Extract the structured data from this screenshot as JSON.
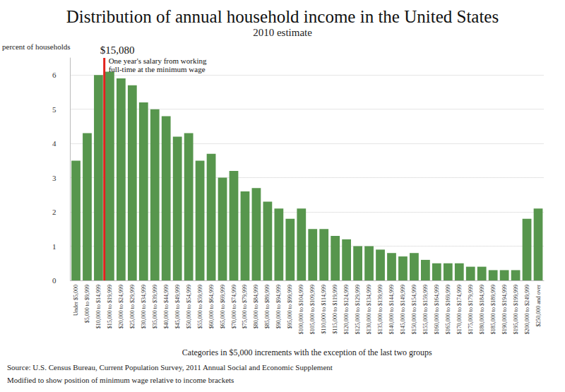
{
  "chart_data": {
    "type": "bar",
    "title": "Distribution of annual household income in the United States",
    "subtitle": "2010 estimate",
    "y_label": "percent of households",
    "x_label": "Categories in $5,000 increments with the exception of the last two groups",
    "source": "Source: U.S. Census Bureau, Current Population Survey, 2011 Annual Social and Economic Supplement",
    "note": "Modified to show position of minimum wage relative to income brackets",
    "categories": [
      "Under $5,000",
      "$5,000 to $9,999",
      "$10,000 to $14,999",
      "$15,000 to $19,999",
      "$20,000 to $24,999",
      "$25,000 to $29,999",
      "$30,000 to $34,999",
      "$35,000 to $39,999",
      "$40,000 to $44,999",
      "$45,000 to $49,999",
      "$50,000 to $54,999",
      "$55,000 to $59,999",
      "$60,000 to $64,999",
      "$65,000 to $69,999",
      "$70,000 to $74,999",
      "$75,000 to $79,999",
      "$80,000 to $84,999",
      "$85,000 to $89,999",
      "$90,000 to $94,999",
      "$95,000 to $99,999",
      "$100,000 to $104,999",
      "$105,000 to $109,999",
      "$110,000 to $114,999",
      "$115,000 to $119,999",
      "$120,000 to $124,999",
      "$125,000 to $129,999",
      "$130,000 to $134,999",
      "$135,000 to $139,999",
      "$140,000 to $144,999",
      "$145,000 to $149,999",
      "$150,000 to $154,999",
      "$155,000 to $159,999",
      "$160,000 to $164,999",
      "$165,000 to $169,999",
      "$170,000 to $174,999",
      "$175,000 to $179,999",
      "$180,000 to $184,999",
      "$185,000 to $189,999",
      "$190,000 to $194,999",
      "$195,000 to $199,999",
      "$200,000 to $249,999",
      "$250,000 and over"
    ],
    "values": [
      3.5,
      4.3,
      6.0,
      6.1,
      5.9,
      5.7,
      5.2,
      5.0,
      4.8,
      4.2,
      4.3,
      3.5,
      3.7,
      3.0,
      3.2,
      2.6,
      2.7,
      2.3,
      2.1,
      1.8,
      2.1,
      1.5,
      1.5,
      1.3,
      1.2,
      1.0,
      1.0,
      0.9,
      0.8,
      0.7,
      0.8,
      0.6,
      0.5,
      0.5,
      0.5,
      0.4,
      0.4,
      0.3,
      0.3,
      0.3,
      1.8,
      2.1
    ],
    "bins": [
      0,
      5000,
      10000,
      15000,
      20000,
      25000,
      30000,
      35000,
      40000,
      45000,
      50000,
      55000,
      60000,
      65000,
      70000,
      75000,
      80000,
      85000,
      90000,
      95000,
      100000,
      105000,
      110000,
      115000,
      120000,
      125000,
      130000,
      135000,
      140000,
      145000,
      150000,
      155000,
      160000,
      165000,
      170000,
      175000,
      180000,
      185000,
      190000,
      195000,
      200000,
      250000,
      null
    ],
    "color": "#57964d",
    "ylim": [
      0,
      6.5
    ],
    "yticks": [
      0,
      1,
      2,
      3,
      4,
      5,
      6
    ],
    "grid": true,
    "annotations": [
      {
        "x": 15080,
        "label": "$15,080",
        "text": "One year's salary from working\nfull-time at the minimum wage",
        "color": "#e3211c"
      }
    ]
  }
}
